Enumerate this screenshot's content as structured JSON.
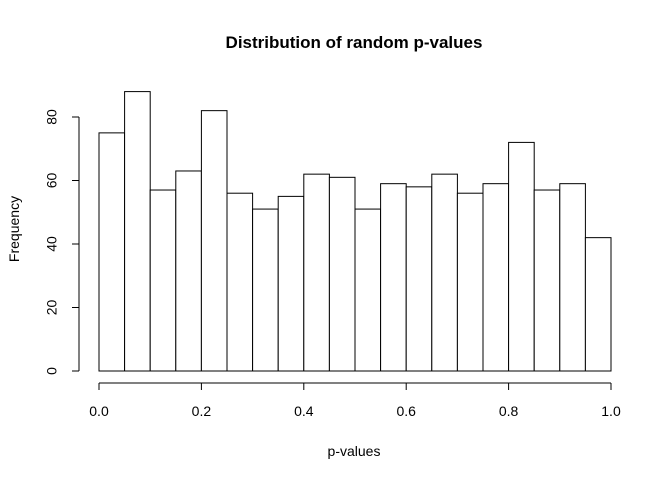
{
  "chart_data": {
    "type": "bar",
    "subtype": "histogram",
    "title": "Distribution of random p-values",
    "xlabel": "p-values",
    "ylabel": "Frequency",
    "bin_edges": [
      0.0,
      0.05,
      0.1,
      0.15,
      0.2,
      0.25,
      0.3,
      0.35,
      0.4,
      0.45,
      0.5,
      0.55,
      0.6,
      0.65,
      0.7,
      0.75,
      0.8,
      0.85,
      0.9,
      0.95,
      1.0
    ],
    "values": [
      75,
      88,
      57,
      63,
      82,
      56,
      51,
      55,
      62,
      61,
      51,
      59,
      58,
      62,
      56,
      59,
      72,
      57,
      59,
      42
    ],
    "xlim": [
      0.0,
      1.0
    ],
    "ylim": [
      0,
      88
    ],
    "x_ticks": [
      0.0,
      0.2,
      0.4,
      0.6,
      0.8,
      1.0
    ],
    "x_tick_labels": [
      "0.0",
      "0.2",
      "0.4",
      "0.6",
      "0.8",
      "1.0"
    ],
    "y_ticks": [
      0,
      20,
      40,
      60,
      80
    ],
    "y_tick_labels": [
      "0",
      "20",
      "40",
      "60",
      "80"
    ],
    "grid": false,
    "colors": {
      "bar_fill": "#ffffff",
      "bar_stroke": "#000000"
    }
  }
}
